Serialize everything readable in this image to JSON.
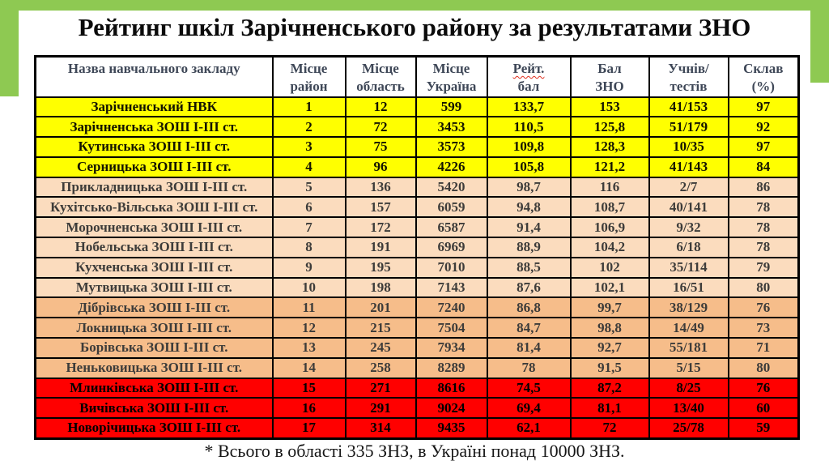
{
  "page": {
    "title": "Рейтинг шкіл Зарічненського району за результатами ЗНО",
    "footnote": "* Всього в області 335 ЗНЗ, в Україні понад 10000 ЗНЗ.",
    "accent_green": "#8ec952"
  },
  "table": {
    "columns": [
      {
        "id": "name",
        "line1": "Назва навчального закладу",
        "line2": ""
      },
      {
        "id": "place_district",
        "line1": "Місце",
        "line2": "район"
      },
      {
        "id": "place_region",
        "line1": "Місце",
        "line2": "область"
      },
      {
        "id": "place_ukraine",
        "line1": "Місце",
        "line2": "Україна"
      },
      {
        "id": "rating_score",
        "line1": "Рейт.",
        "line2": "бал",
        "squiggle": true
      },
      {
        "id": "zno_score",
        "line1": "Бал",
        "line2": "ЗНО"
      },
      {
        "id": "students_tests",
        "line1": "Учнів/",
        "line2": "тестів"
      },
      {
        "id": "passed_pct",
        "line1": "Склав",
        "line2": "(%)"
      }
    ],
    "tier_colors": {
      "top": "#ffff00",
      "upper_mid": "#fbdcbe",
      "lower_mid": "#f6bd8a",
      "bottom": "#ff0000"
    },
    "rows": [
      {
        "name": "Зарічненський НВК",
        "place_district": "1",
        "place_region": "12",
        "place_ukraine": "599",
        "rating_score": "133,7",
        "zno_score": "153",
        "students_tests": "41/153",
        "passed_pct": "97",
        "tier": "top"
      },
      {
        "name": "Зарічненська ЗОШ І-ІІІ ст.",
        "place_district": "2",
        "place_region": "72",
        "place_ukraine": "3453",
        "rating_score": "110,5",
        "zno_score": "125,8",
        "students_tests": "51/179",
        "passed_pct": "92",
        "tier": "top"
      },
      {
        "name": "Кутинська ЗОШ І-ІІІ ст.",
        "place_district": "3",
        "place_region": "75",
        "place_ukraine": "3573",
        "rating_score": "109,8",
        "zno_score": "128,3",
        "students_tests": "10/35",
        "passed_pct": "97",
        "tier": "top"
      },
      {
        "name": "Серницька ЗОШ І-ІІІ ст.",
        "place_district": "4",
        "place_region": "96",
        "place_ukraine": "4226",
        "rating_score": "105,8",
        "zno_score": "121,2",
        "students_tests": "41/143",
        "passed_pct": "84",
        "tier": "top"
      },
      {
        "name": "Прикладницька ЗОШ І-ІІІ ст.",
        "place_district": "5",
        "place_region": "136",
        "place_ukraine": "5420",
        "rating_score": "98,7",
        "zno_score": "116",
        "students_tests": "2/7",
        "passed_pct": "86",
        "tier": "upper_mid"
      },
      {
        "name": "Кухітсько-Вільська ЗОШ І-ІІІ ст.",
        "place_district": "6",
        "place_region": "157",
        "place_ukraine": "6059",
        "rating_score": "94,8",
        "zno_score": "108,7",
        "students_tests": "40/141",
        "passed_pct": "78",
        "tier": "upper_mid"
      },
      {
        "name": "Морочненська ЗОШ І-ІІІ ст.",
        "place_district": "7",
        "place_region": "172",
        "place_ukraine": "6587",
        "rating_score": "91,4",
        "zno_score": "106,9",
        "students_tests": "9/32",
        "passed_pct": "78",
        "tier": "upper_mid"
      },
      {
        "name": "Нобельська ЗОШ І-ІІІ ст.",
        "place_district": "8",
        "place_region": "191",
        "place_ukraine": "6969",
        "rating_score": "88,9",
        "zno_score": "104,2",
        "students_tests": "6/18",
        "passed_pct": "78",
        "tier": "upper_mid"
      },
      {
        "name": "Кухченська ЗОШ І-ІІІ ст.",
        "place_district": "9",
        "place_region": "195",
        "place_ukraine": "7010",
        "rating_score": "88,5",
        "zno_score": "102",
        "students_tests": "35/114",
        "passed_pct": "79",
        "tier": "upper_mid"
      },
      {
        "name": "Мутвицька ЗОШ І-ІІІ ст.",
        "place_district": "10",
        "place_region": "198",
        "place_ukraine": "7143",
        "rating_score": "87,6",
        "zno_score": "102,1",
        "students_tests": "16/51",
        "passed_pct": "80",
        "tier": "upper_mid"
      },
      {
        "name": "Дібрівська ЗОШ І-ІІІ ст.",
        "place_district": "11",
        "place_region": "201",
        "place_ukraine": "7240",
        "rating_score": "86,8",
        "zno_score": "99,7",
        "students_tests": "38/129",
        "passed_pct": "76",
        "tier": "lower_mid"
      },
      {
        "name": "Локницька ЗОШ І-ІІІ ст.",
        "place_district": "12",
        "place_region": "215",
        "place_ukraine": "7504",
        "rating_score": "84,7",
        "zno_score": "98,8",
        "students_tests": "14/49",
        "passed_pct": "73",
        "tier": "lower_mid"
      },
      {
        "name": "Борівська ЗОШ І-ІІІ ст.",
        "place_district": "13",
        "place_region": "245",
        "place_ukraine": "7934",
        "rating_score": "81,4",
        "zno_score": "92,7",
        "students_tests": "55/181",
        "passed_pct": "71",
        "tier": "lower_mid"
      },
      {
        "name": "Неньковицька ЗОШ І-ІІІ ст.",
        "place_district": "14",
        "place_region": "258",
        "place_ukraine": "8289",
        "rating_score": "78",
        "zno_score": "91,5",
        "students_tests": "5/15",
        "passed_pct": "80",
        "tier": "lower_mid"
      },
      {
        "name": "Млинківська ЗОШ І-ІІІ ст.",
        "place_district": "15",
        "place_region": "271",
        "place_ukraine": "8616",
        "rating_score": "74,5",
        "zno_score": "87,2",
        "students_tests": "8/25",
        "passed_pct": "76",
        "tier": "bottom"
      },
      {
        "name": "Вичівська ЗОШ І-ІІІ ст.",
        "place_district": "16",
        "place_region": "291",
        "place_ukraine": "9024",
        "rating_score": "69,4",
        "zno_score": "81,1",
        "students_tests": "13/40",
        "passed_pct": "60",
        "tier": "bottom"
      },
      {
        "name": "Новорічицька ЗОШ І-ІІІ ст.",
        "place_district": "17",
        "place_region": "314",
        "place_ukraine": "9435",
        "rating_score": "62,1",
        "zno_score": "72",
        "students_tests": "25/78",
        "passed_pct": "59",
        "tier": "bottom"
      }
    ]
  }
}
